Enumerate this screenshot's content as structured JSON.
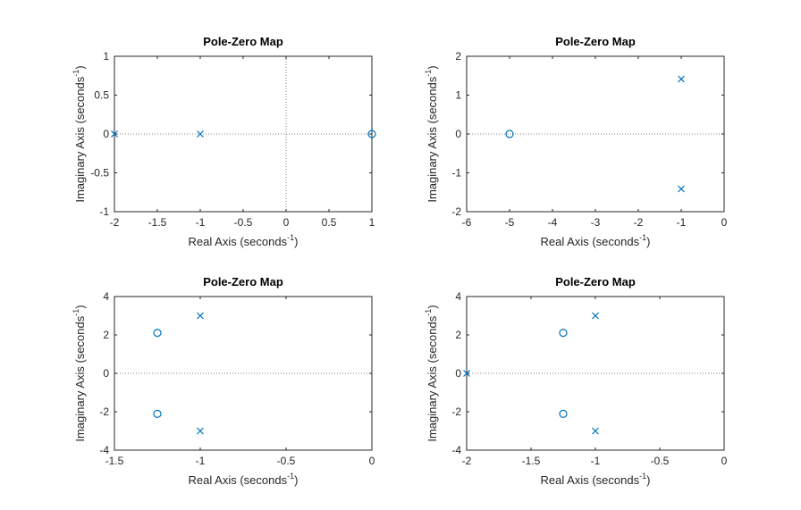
{
  "colors": {
    "marker": "#0072BD",
    "axis": "#262626",
    "zero_line": "#7f7f7f",
    "background": "#ffffff"
  },
  "chart_data": [
    {
      "type": "scatter",
      "title": "Pole-Zero Map",
      "xlabel": {
        "text": "Real Axis (seconds",
        "sup": "-1",
        "close": ")"
      },
      "ylabel": {
        "text": "Imaginary Axis (seconds",
        "sup": "-1",
        "close": ")"
      },
      "xlim": [
        -2,
        1
      ],
      "ylim": [
        -1,
        1
      ],
      "xticks": [
        -2,
        -1.5,
        -1,
        -0.5,
        0,
        0.5,
        1
      ],
      "xtick_labels": [
        "-2",
        "-1.5",
        "-1",
        "-0.5",
        "0",
        "0.5",
        "1"
      ],
      "yticks": [
        -1,
        -0.5,
        0,
        0.5,
        1
      ],
      "ytick_labels": [
        "-1",
        "-0.5",
        "0",
        "0.5",
        "1"
      ],
      "show_x_zero_line": true,
      "show_y_zero_line": true,
      "poles": [
        {
          "x": -2,
          "y": 0
        },
        {
          "x": -1,
          "y": 0
        }
      ],
      "zeros": [
        {
          "x": 1,
          "y": 0
        }
      ]
    },
    {
      "type": "scatter",
      "title": "Pole-Zero Map",
      "xlabel": {
        "text": "Real Axis (seconds",
        "sup": "-1",
        "close": ")"
      },
      "ylabel": {
        "text": "Imaginary Axis (seconds",
        "sup": "-1",
        "close": ")"
      },
      "xlim": [
        -6,
        0
      ],
      "ylim": [
        -2,
        2
      ],
      "xticks": [
        -6,
        -5,
        -4,
        -3,
        -2,
        -1,
        0
      ],
      "xtick_labels": [
        "-6",
        "-5",
        "-4",
        "-3",
        "-2",
        "-1",
        "0"
      ],
      "yticks": [
        -2,
        -1,
        0,
        1,
        2
      ],
      "ytick_labels": [
        "-2",
        "-1",
        "0",
        "1",
        "2"
      ],
      "show_x_zero_line": true,
      "show_y_zero_line": false,
      "poles": [
        {
          "x": -1,
          "y": 1.414
        },
        {
          "x": -1,
          "y": -1.414
        }
      ],
      "zeros": [
        {
          "x": -5,
          "y": 0
        }
      ]
    },
    {
      "type": "scatter",
      "title": "Pole-Zero Map",
      "xlabel": {
        "text": "Real Axis (seconds",
        "sup": "-1",
        "close": ")"
      },
      "ylabel": {
        "text": "Imaginary Axis (seconds",
        "sup": "-1",
        "close": ")"
      },
      "xlim": [
        -1.5,
        0
      ],
      "ylim": [
        -4,
        4
      ],
      "xticks": [
        -1.5,
        -1,
        -0.5,
        0
      ],
      "xtick_labels": [
        "-1.5",
        "-1",
        "-0.5",
        "0"
      ],
      "yticks": [
        -4,
        -2,
        0,
        2,
        4
      ],
      "ytick_labels": [
        "-4",
        "-2",
        "0",
        "2",
        "4"
      ],
      "show_x_zero_line": true,
      "show_y_zero_line": false,
      "poles": [
        {
          "x": -1,
          "y": 3
        },
        {
          "x": -1,
          "y": -3
        }
      ],
      "zeros": [
        {
          "x": -1.25,
          "y": 2.11
        },
        {
          "x": -1.25,
          "y": -2.11
        }
      ]
    },
    {
      "type": "scatter",
      "title": "Pole-Zero Map",
      "xlabel": {
        "text": "Real Axis (seconds",
        "sup": "-1",
        "close": ")"
      },
      "ylabel": {
        "text": "Imaginary Axis (seconds",
        "sup": "-1",
        "close": ")"
      },
      "xlim": [
        -2,
        0
      ],
      "ylim": [
        -4,
        4
      ],
      "xticks": [
        -2,
        -1.5,
        -1,
        -0.5,
        0
      ],
      "xtick_labels": [
        "-2",
        "-1.5",
        "-1",
        "-0.5",
        "0"
      ],
      "yticks": [
        -4,
        -2,
        0,
        2,
        4
      ],
      "ytick_labels": [
        "-4",
        "-2",
        "0",
        "2",
        "4"
      ],
      "show_x_zero_line": true,
      "show_y_zero_line": false,
      "poles": [
        {
          "x": -2,
          "y": 0
        },
        {
          "x": -1,
          "y": 3
        },
        {
          "x": -1,
          "y": -3
        }
      ],
      "zeros": [
        {
          "x": -1.25,
          "y": 2.11
        },
        {
          "x": -1.25,
          "y": -2.11
        }
      ]
    }
  ]
}
